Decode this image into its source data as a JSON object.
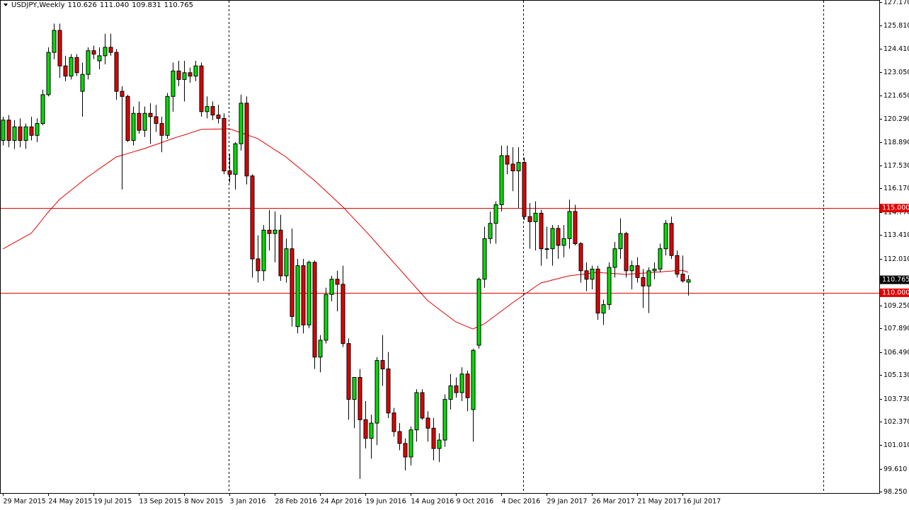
{
  "chart_data": {
    "type": "candlestick",
    "title": "USDJPY,Weekly",
    "header_values": [
      110.626,
      111.04,
      109.831,
      110.765
    ],
    "header_value_labels": [
      "110.626",
      "111.040",
      "109.831",
      "110.765"
    ],
    "categories": [
      "29 Mar 2015",
      null,
      null,
      null,
      null,
      null,
      null,
      null,
      "24 May 2015",
      null,
      null,
      null,
      null,
      null,
      null,
      null,
      "19 Jul 2015",
      null,
      null,
      null,
      null,
      null,
      null,
      null,
      "13 Sep 2015",
      null,
      null,
      null,
      null,
      null,
      null,
      null,
      "8 Nov 2015",
      null,
      null,
      null,
      null,
      null,
      null,
      null,
      "3 Jan 2016",
      null,
      null,
      null,
      null,
      null,
      null,
      null,
      "28 Feb 2016",
      null,
      null,
      null,
      null,
      null,
      null,
      null,
      "24 Apr 2016",
      null,
      null,
      null,
      null,
      null,
      null,
      null,
      "19 Jun 2016",
      null,
      null,
      null,
      null,
      null,
      null,
      null,
      "14 Aug 2016",
      null,
      null,
      null,
      null,
      null,
      null,
      null,
      "9 Oct 2016",
      null,
      null,
      null,
      null,
      null,
      null,
      null,
      "4 Dec 2016",
      null,
      null,
      null,
      null,
      null,
      null,
      null,
      "29 Jan 2017",
      null,
      null,
      null,
      null,
      null,
      null,
      null,
      "26 Mar 2017",
      null,
      null,
      null,
      null,
      null,
      null,
      null,
      "21 May 2017",
      null,
      null,
      null,
      null,
      null,
      null,
      null,
      "16 Jul 2017",
      null
    ],
    "open": [
      119.0,
      120.2,
      119.0,
      119.8,
      119.0,
      119.8,
      119.3,
      120.0,
      121.7,
      124.2,
      125.5,
      123.4,
      122.8,
      123.9,
      121.9,
      122.9,
      124.3,
      123.7,
      124.0,
      124.5,
      124.2,
      121.9,
      121.6,
      119.0,
      120.6,
      119.6,
      120.6,
      120.4,
      120.0,
      119.3,
      121.6,
      123.1,
      122.6,
      123.0,
      122.8,
      123.4,
      120.7,
      121.0,
      120.5,
      120.3,
      117.2,
      117.0,
      118.8,
      121.2,
      116.9,
      112.0,
      111.3,
      113.7,
      113.5,
      113.7,
      111.0,
      112.6,
      108.0,
      111.6,
      108.1,
      111.8,
      106.2,
      107.2,
      109.9,
      110.8,
      110.5,
      107.0,
      103.7,
      105.0,
      102.5,
      101.4,
      102.3,
      106.0,
      105.5,
      102.9,
      101.8,
      101.1,
      100.3,
      101.9,
      104.1,
      102.6,
      102.0,
      100.8,
      101.3,
      103.7,
      104.5,
      104.1,
      105.2,
      103.1,
      106.9,
      110.8,
      113.2,
      114.1,
      115.2,
      118.1,
      117.6,
      117.2,
      117.7,
      114.5,
      114.2,
      114.7,
      112.6,
      112.6,
      113.8,
      112.8,
      113.2,
      114.8,
      112.9,
      111.3,
      110.8,
      111.4,
      108.8,
      109.3,
      111.5,
      112.6,
      113.5,
      111.3,
      111.6,
      110.9,
      110.4,
      111.3,
      111.4,
      112.6,
      114.1,
      112.2,
      111.1,
      110.626
    ],
    "high": [
      120.4,
      120.5,
      120.2,
      120.3,
      120.0,
      120.4,
      120.3,
      122.0,
      124.5,
      125.9,
      125.9,
      124.0,
      124.1,
      124.1,
      123.6,
      124.5,
      124.6,
      124.5,
      125.3,
      125.3,
      124.4,
      122.2,
      121.7,
      121.0,
      121.3,
      121.0,
      121.2,
      121.1,
      120.4,
      121.8,
      123.6,
      123.7,
      123.7,
      123.3,
      123.7,
      123.6,
      121.6,
      121.3,
      121.1,
      120.6,
      118.2,
      118.9,
      121.7,
      121.6,
      117.0,
      113.4,
      114.0,
      114.9,
      114.8,
      114.6,
      113.2,
      113.8,
      112.0,
      112.0,
      111.9,
      111.9,
      107.5,
      110.3,
      111.0,
      111.3,
      111.6,
      107.3,
      105.0,
      105.5,
      103.6,
      102.8,
      106.2,
      107.5,
      106.5,
      103.2,
      102.3,
      101.4,
      102.1,
      104.3,
      104.3,
      103.0,
      102.6,
      101.7,
      104.0,
      105.2,
      105.0,
      105.6,
      105.4,
      106.7,
      110.9,
      113.9,
      114.8,
      115.4,
      118.7,
      118.7,
      118.6,
      118.6,
      118.0,
      115.3,
      115.4,
      114.9,
      113.9,
      114.0,
      114.0,
      114.0,
      115.5,
      115.2,
      113.0,
      111.8,
      111.6,
      111.6,
      109.6,
      111.8,
      113.0,
      114.4,
      113.6,
      111.9,
      112.1,
      111.4,
      111.5,
      111.8,
      112.9,
      114.3,
      114.5,
      112.5,
      112.2,
      111.04
    ],
    "low": [
      118.7,
      118.6,
      118.5,
      118.6,
      118.5,
      119.0,
      118.9,
      119.9,
      121.6,
      123.8,
      122.7,
      122.5,
      122.6,
      122.8,
      120.4,
      122.6,
      123.8,
      123.2,
      123.5,
      124.0,
      121.4,
      116.1,
      118.9,
      118.7,
      119.4,
      119.2,
      118.8,
      119.5,
      118.3,
      119.1,
      120.7,
      122.2,
      121.3,
      122.4,
      122.5,
      120.4,
      120.3,
      120.2,
      120.0,
      117.0,
      116.5,
      116.1,
      118.4,
      116.4,
      110.9,
      110.6,
      110.7,
      112.5,
      111.8,
      110.7,
      110.6,
      108.0,
      107.6,
      107.6,
      107.9,
      105.5,
      105.3,
      107.0,
      109.5,
      108.9,
      106.8,
      102.5,
      102.0,
      99.0,
      100.8,
      100.2,
      101.0,
      104.5,
      102.6,
      101.5,
      100.7,
      99.5,
      99.8,
      101.2,
      102.5,
      101.2,
      100.1,
      100.0,
      100.9,
      103.1,
      103.8,
      103.6,
      103.0,
      101.2,
      106.7,
      110.3,
      112.9,
      112.9,
      114.8,
      117.0,
      116.0,
      115.0,
      114.3,
      112.6,
      112.5,
      111.6,
      112.0,
      111.6,
      112.0,
      112.1,
      112.6,
      112.8,
      110.6,
      110.1,
      110.2,
      108.4,
      108.1,
      109.0,
      110.9,
      112.0,
      110.9,
      110.2,
      110.6,
      109.1,
      108.8,
      110.8,
      111.2,
      112.2,
      112.0,
      110.9,
      110.6,
      109.831
    ],
    "close": [
      120.2,
      119.0,
      119.8,
      119.0,
      119.8,
      119.3,
      120.0,
      121.7,
      124.2,
      125.5,
      123.4,
      122.8,
      123.9,
      123.0,
      122.9,
      124.3,
      124.1,
      124.0,
      124.5,
      124.2,
      121.9,
      121.6,
      119.0,
      120.6,
      119.6,
      120.6,
      120.4,
      120.0,
      119.3,
      121.6,
      123.1,
      122.6,
      123.0,
      122.8,
      123.4,
      120.7,
      121.0,
      120.5,
      120.3,
      117.2,
      117.0,
      118.8,
      121.2,
      116.9,
      112.0,
      111.3,
      113.7,
      113.5,
      113.7,
      111.0,
      112.6,
      108.6,
      111.6,
      108.1,
      111.8,
      106.2,
      107.2,
      109.9,
      110.8,
      110.5,
      107.0,
      103.7,
      105.0,
      102.5,
      101.4,
      102.3,
      106.0,
      105.5,
      102.9,
      101.8,
      101.1,
      100.3,
      101.9,
      104.1,
      102.6,
      102.0,
      100.8,
      101.3,
      103.7,
      104.5,
      104.1,
      105.2,
      103.8,
      106.6,
      110.8,
      113.2,
      114.1,
      115.2,
      118.1,
      117.6,
      117.2,
      117.7,
      114.5,
      114.2,
      114.7,
      112.6,
      112.6,
      113.8,
      112.8,
      113.2,
      114.8,
      112.9,
      111.3,
      110.8,
      111.4,
      108.8,
      109.3,
      111.5,
      112.6,
      113.5,
      111.3,
      111.6,
      110.9,
      110.4,
      111.3,
      111.4,
      112.6,
      114.1,
      112.2,
      111.1,
      110.7,
      110.765
    ],
    "up_color": "#00dd00",
    "down_color": "#e00000",
    "ma": {
      "color": "#e00000",
      "values": [
        112.59,
        112.77,
        112.96,
        113.14,
        113.33,
        113.51,
        113.92,
        114.34,
        114.76,
        115.13,
        115.51,
        115.78,
        116.05,
        116.31,
        116.58,
        116.85,
        117.08,
        117.32,
        117.55,
        117.78,
        118.02,
        118.12,
        118.22,
        118.32,
        118.42,
        118.52,
        118.64,
        118.75,
        118.87,
        118.99,
        119.11,
        119.22,
        119.32,
        119.43,
        119.54,
        119.65,
        119.66,
        119.67,
        119.67,
        119.68,
        119.69,
        119.57,
        119.46,
        119.34,
        119.22,
        119.11,
        118.89,
        118.67,
        118.45,
        118.24,
        118.02,
        117.74,
        117.47,
        117.19,
        116.91,
        116.64,
        116.33,
        116.02,
        115.71,
        115.4,
        115.09,
        114.73,
        114.37,
        114.02,
        113.66,
        113.3,
        112.92,
        112.55,
        112.17,
        111.79,
        111.42,
        111.04,
        110.66,
        110.29,
        109.91,
        109.54,
        109.29,
        109.03,
        108.78,
        108.53,
        108.28,
        108.14,
        108.0,
        107.86,
        108.01,
        108.16,
        108.41,
        108.66,
        108.91,
        109.16,
        109.41,
        109.64,
        109.88,
        110.11,
        110.35,
        110.58,
        110.66,
        110.75,
        110.83,
        110.92,
        111.0,
        111.04,
        111.08,
        111.12,
        111.17,
        111.21,
        111.18,
        111.16,
        111.13,
        111.11,
        111.08,
        111.11,
        111.13,
        111.16,
        111.18,
        111.21,
        111.23,
        111.26,
        111.28,
        111.31,
        111.33,
        111.21
      ]
    },
    "hlines": [
      {
        "value": 115,
        "label": "115.000",
        "color": "#e00000"
      },
      {
        "value": 110,
        "label": "110.000",
        "color": "#e00000"
      }
    ],
    "last_price": {
      "value": 110.765,
      "label": "110.765",
      "color": "#000000"
    },
    "ylim": [
      98.17,
      127.295
    ],
    "yticks": [
      {
        "value": 127.17,
        "label": "127.170"
      },
      {
        "value": 125.81,
        "label": "125.810"
      },
      {
        "value": 124.41,
        "label": "124.410"
      },
      {
        "value": 123.05,
        "label": "123.050"
      },
      {
        "value": 121.65,
        "label": "121.650"
      },
      {
        "value": 120.29,
        "label": "120.290"
      },
      {
        "value": 118.89,
        "label": "118.890"
      },
      {
        "value": 117.53,
        "label": "117.530"
      },
      {
        "value": 116.17,
        "label": "116.170"
      },
      {
        "value": 114.77,
        "label": "114.770"
      },
      {
        "value": 113.41,
        "label": "113.410"
      },
      {
        "value": 112.01,
        "label": "112.010"
      },
      {
        "value": 110.65,
        "label": "110.650"
      },
      {
        "value": 109.25,
        "label": "109.250"
      },
      {
        "value": 107.89,
        "label": "107.890"
      },
      {
        "value": 106.49,
        "label": "106.490"
      },
      {
        "value": 105.13,
        "label": "105.130"
      },
      {
        "value": 103.73,
        "label": "103.730"
      },
      {
        "value": 102.37,
        "label": "102.370"
      },
      {
        "value": 101.01,
        "label": "101.010"
      },
      {
        "value": 99.61,
        "label": "99.610"
      },
      {
        "value": 98.25,
        "label": "98.250"
      }
    ],
    "grid": false
  }
}
